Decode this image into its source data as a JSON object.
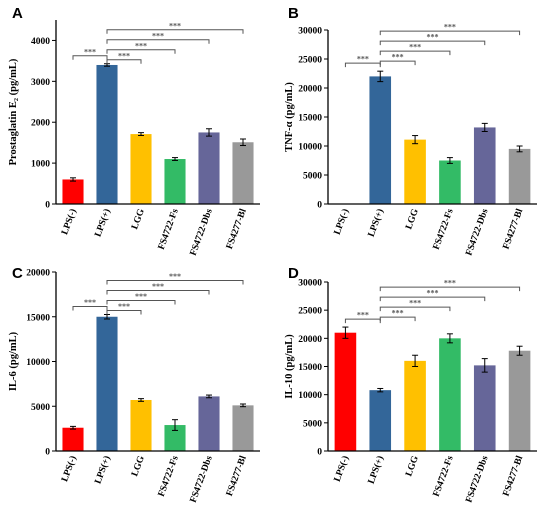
{
  "chart_data": [
    {
      "type": "bar",
      "panel": "A",
      "ylabel": "Prostaglatin E₂ (pg/mL)",
      "ylim": [
        0,
        4500
      ],
      "yticks": [
        0,
        1000,
        2000,
        3000,
        4000
      ],
      "categories": [
        "LPS(-)",
        "LPS(+)",
        "LGG",
        "FS4722-Fs",
        "FS4722-Dbs",
        "FS4277-Bl"
      ],
      "values": [
        600,
        3400,
        1710,
        1100,
        1750,
        1510
      ],
      "errors": [
        40,
        30,
        35,
        35,
        90,
        80
      ],
      "significance": [
        {
          "from": 0,
          "to": 1,
          "label": "***"
        },
        {
          "from": 1,
          "to": 2,
          "label": "***"
        },
        {
          "from": 1,
          "to": 3,
          "label": "***"
        },
        {
          "from": 1,
          "to": 4,
          "label": "***"
        },
        {
          "from": 1,
          "to": 5,
          "label": "***"
        }
      ]
    },
    {
      "type": "bar",
      "panel": "B",
      "ylabel": "TNF-α (pg/mL)",
      "ylim": [
        0,
        30000
      ],
      "yticks": [
        0,
        5000,
        10000,
        15000,
        20000,
        25000,
        30000
      ],
      "categories": [
        "LPS(-)",
        "LPS(+)",
        "LGG",
        "FS4722-Fs",
        "FS4722-Dbs",
        "FS4277-Bl"
      ],
      "values": [
        0,
        22000,
        11100,
        7500,
        13200,
        9500
      ],
      "errors": [
        0,
        900,
        700,
        500,
        700,
        500
      ],
      "significance": [
        {
          "from": 0,
          "to": 1,
          "label": "***"
        },
        {
          "from": 1,
          "to": 2,
          "label": "***"
        },
        {
          "from": 1,
          "to": 3,
          "label": "***"
        },
        {
          "from": 1,
          "to": 4,
          "label": "***"
        },
        {
          "from": 1,
          "to": 5,
          "label": "***"
        }
      ]
    },
    {
      "type": "bar",
      "panel": "C",
      "ylabel": "IL-6 (pg/mL)",
      "ylim": [
        0,
        20000
      ],
      "yticks": [
        0,
        5000,
        10000,
        15000,
        20000
      ],
      "categories": [
        "LPS(-)",
        "LPS(+)",
        "LGG",
        "FS4722-Fs",
        "FS4722-Dbs",
        "FS4277-Bl"
      ],
      "values": [
        2600,
        15000,
        5700,
        2900,
        6100,
        5100
      ],
      "errors": [
        150,
        250,
        150,
        600,
        150,
        150
      ],
      "significance": [
        {
          "from": 0,
          "to": 1,
          "label": "***"
        },
        {
          "from": 1,
          "to": 2,
          "label": "***"
        },
        {
          "from": 1,
          "to": 3,
          "label": "***"
        },
        {
          "from": 1,
          "to": 4,
          "label": "***"
        },
        {
          "from": 1,
          "to": 5,
          "label": "***"
        }
      ]
    },
    {
      "type": "bar",
      "panel": "D",
      "ylabel": "IL-10 (pg/mL)",
      "ylim": [
        0,
        30000
      ],
      "yticks": [
        0,
        5000,
        10000,
        15000,
        20000,
        25000,
        30000
      ],
      "categories": [
        "LPS(-)",
        "LPS(+)",
        "LGG",
        "FS4722-Fs",
        "FS4722-Dbs",
        "FS4277-Bl"
      ],
      "values": [
        21000,
        10800,
        16000,
        20000,
        15200,
        17800
      ],
      "errors": [
        1000,
        300,
        1000,
        800,
        1200,
        800
      ],
      "significance": [
        {
          "from": 0,
          "to": 1,
          "label": "***"
        },
        {
          "from": 1,
          "to": 2,
          "label": "***"
        },
        {
          "from": 1,
          "to": 3,
          "label": "***"
        },
        {
          "from": 1,
          "to": 4,
          "label": "***"
        },
        {
          "from": 1,
          "to": 5,
          "label": "***"
        }
      ]
    }
  ],
  "colors": {
    "bars": [
      "#ff0000",
      "#336699",
      "#ffc000",
      "#33bb66",
      "#666699",
      "#999999"
    ],
    "axis": "#000000",
    "bracket": "#555555"
  }
}
